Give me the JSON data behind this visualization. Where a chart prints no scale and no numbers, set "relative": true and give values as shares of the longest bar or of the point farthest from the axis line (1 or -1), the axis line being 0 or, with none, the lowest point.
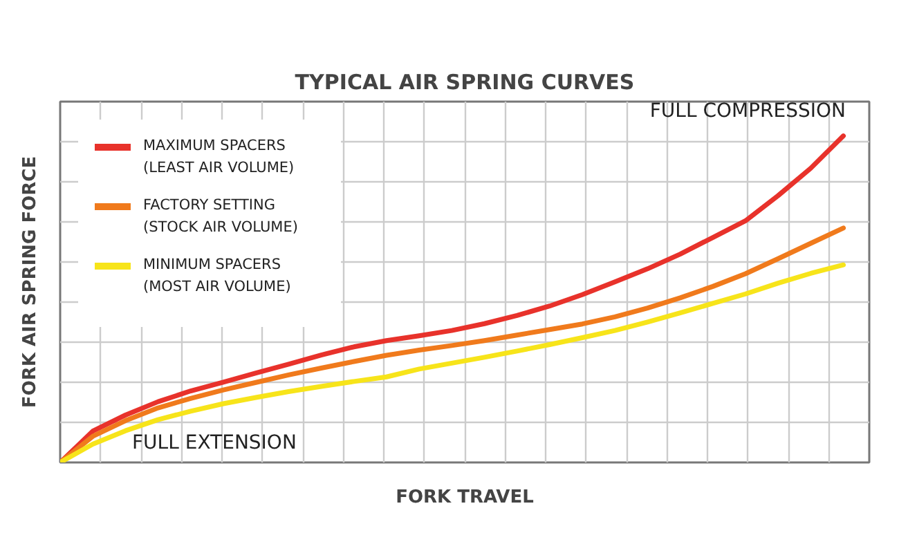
{
  "chart_data": {
    "type": "line",
    "title": "TYPICAL AIR SPRING CURVES",
    "xlabel": "FORK TRAVEL",
    "ylabel": "FORK AIR SPRING FORCE",
    "relative": true,
    "categories": [
      null,
      null,
      null,
      null,
      null,
      null,
      null,
      null,
      null,
      null,
      null,
      null,
      null,
      null,
      null,
      null,
      null,
      null,
      null,
      null,
      null,
      null,
      null,
      null,
      null
    ],
    "series": [
      {
        "name": "MAXIMUM SPACERS\n(LEAST AIR VOLUME)",
        "color": "#e8322b",
        "values": [
          0,
          0.096,
          0.145,
          0.186,
          0.219,
          0.246,
          0.274,
          0.301,
          0.329,
          0.354,
          0.373,
          0.388,
          0.404,
          0.425,
          0.45,
          0.479,
          0.514,
          0.553,
          0.593,
          0.638,
          0.689,
          0.74,
          0.817,
          0.901,
          1.0
        ]
      },
      {
        "name": "FACTORY SETTING\n(STOCK AIR VOLUME)",
        "color": "#f07a1c",
        "values": [
          0,
          0.08,
          0.128,
          0.167,
          0.196,
          0.222,
          0.245,
          0.268,
          0.289,
          0.309,
          0.328,
          0.344,
          0.358,
          0.373,
          0.39,
          0.407,
          0.424,
          0.446,
          0.473,
          0.504,
          0.539,
          0.578,
          0.624,
          0.671,
          0.718
        ]
      },
      {
        "name": "MINIMUM SPACERS\n(MOST AIR VOLUME)",
        "color": "#f7e41a",
        "values": [
          0,
          0.056,
          0.097,
          0.131,
          0.157,
          0.18,
          0.199,
          0.217,
          0.233,
          0.248,
          0.262,
          0.286,
          0.304,
          0.322,
          0.341,
          0.361,
          0.382,
          0.404,
          0.43,
          0.458,
          0.487,
          0.516,
          0.549,
          0.579,
          0.605
        ]
      }
    ],
    "annotations": [
      "FULL COMPRESSION",
      "FULL EXTENSION"
    ],
    "grid": true,
    "legend": "top left",
    "line_style": "solid"
  }
}
